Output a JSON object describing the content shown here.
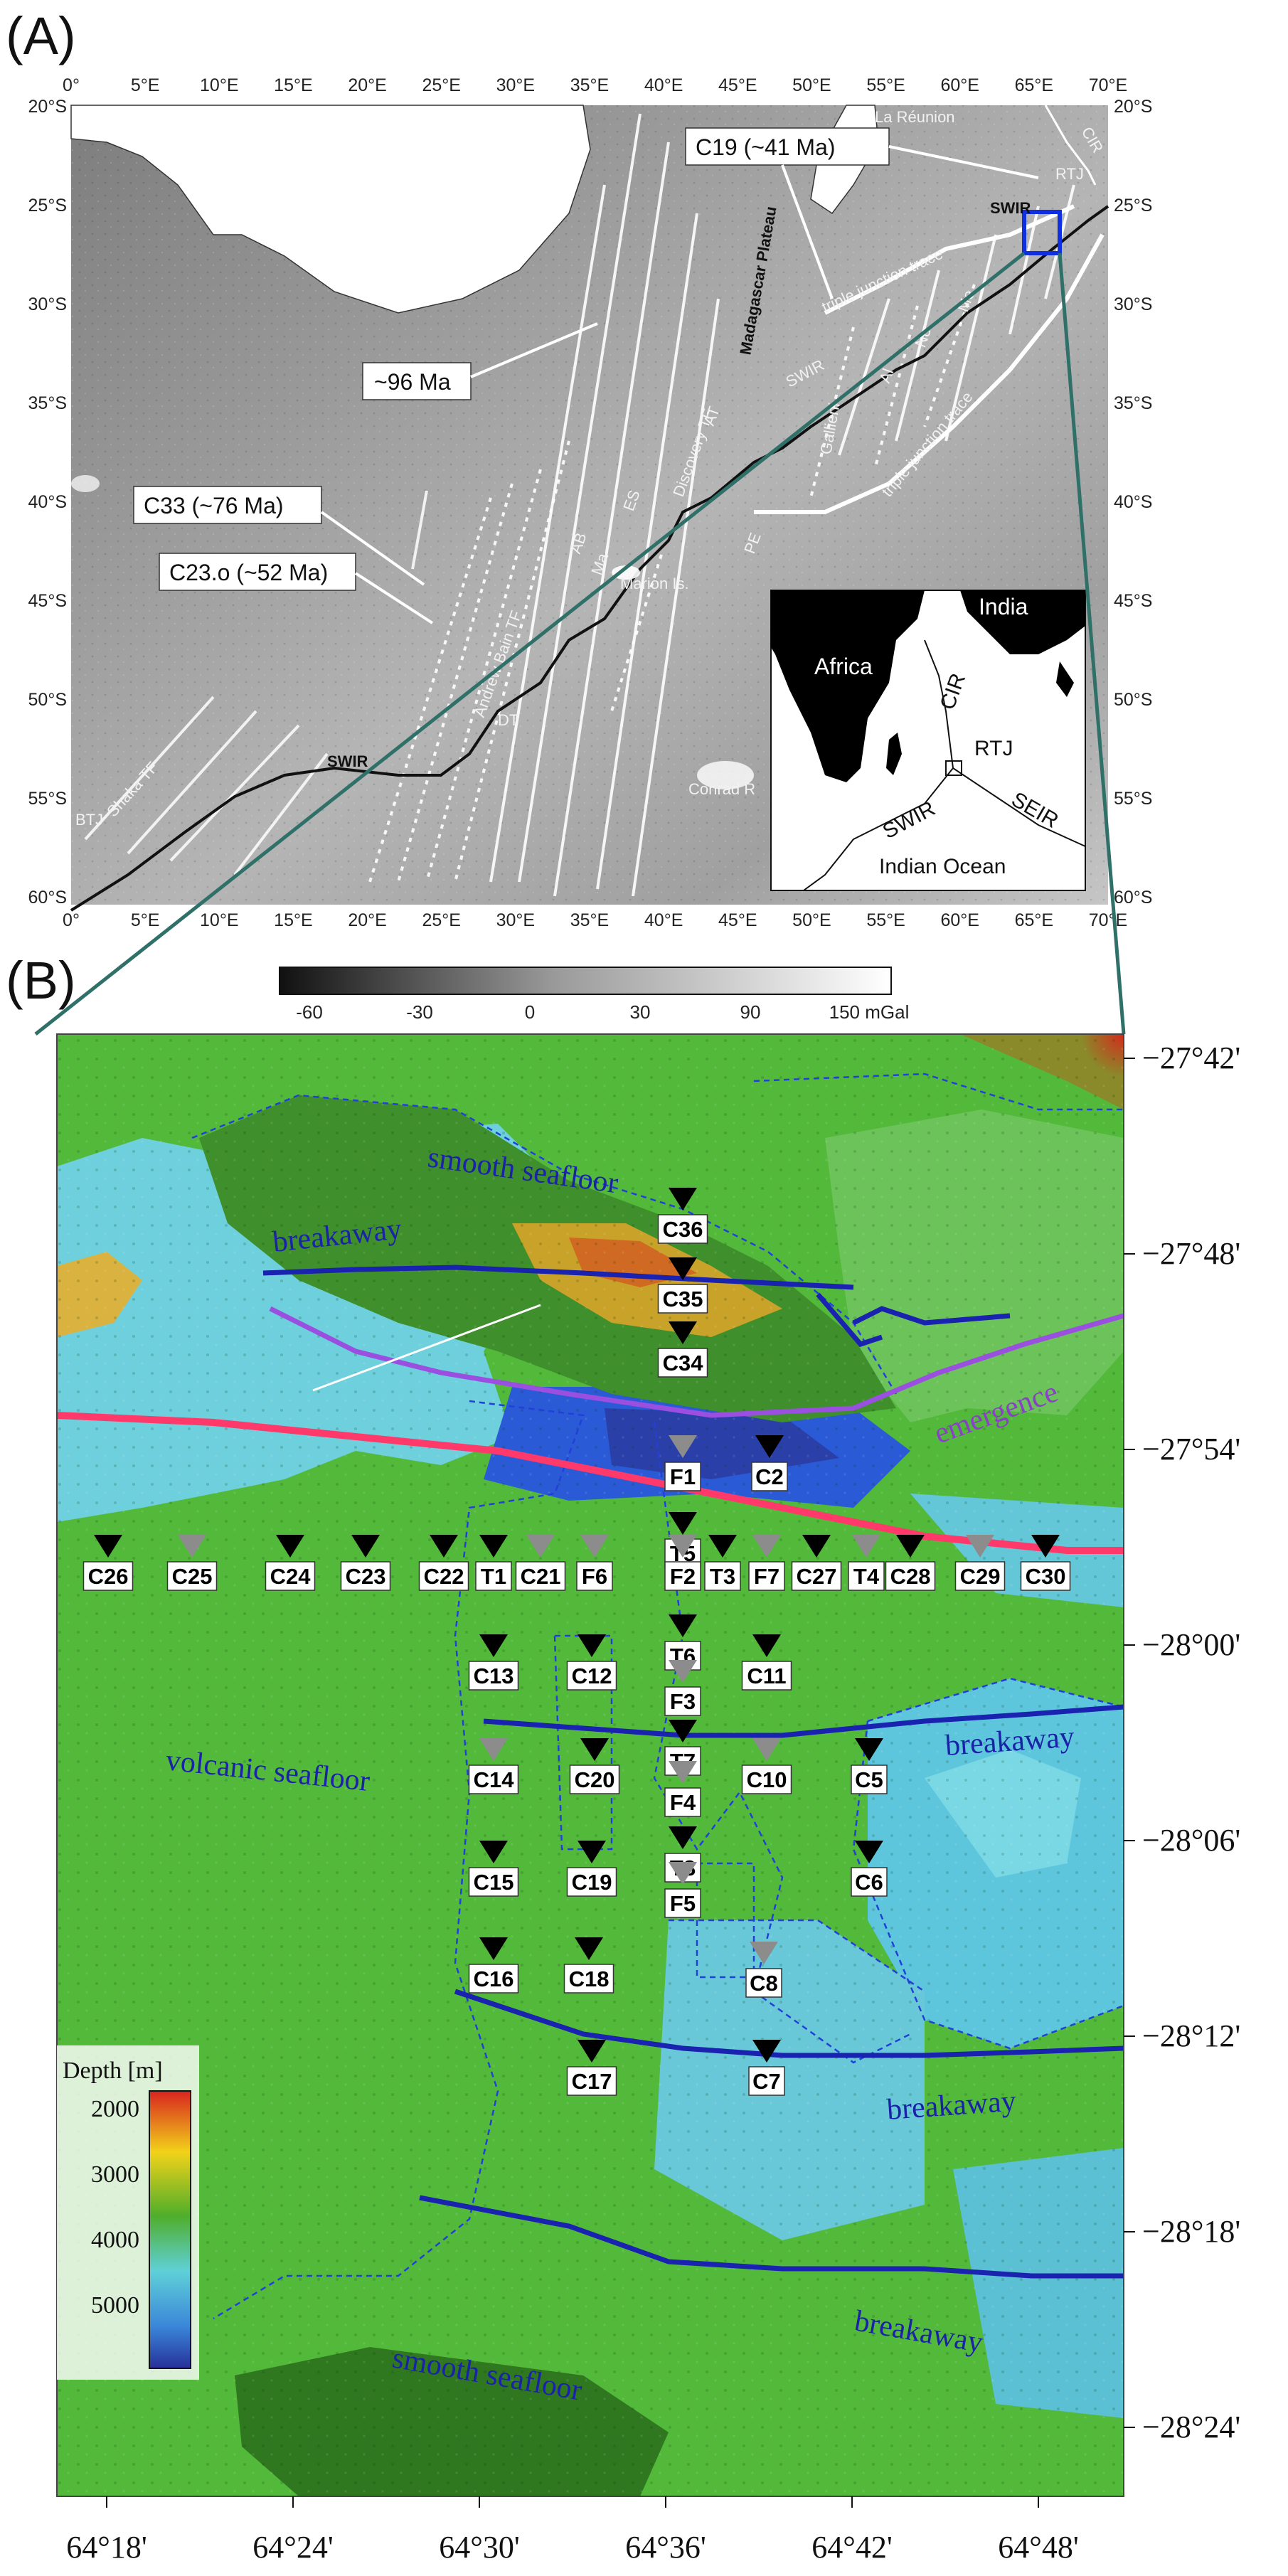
{
  "panels": {
    "a": "(A)",
    "b": "(B)"
  },
  "panel_a": {
    "lon_ticks": [
      "0°",
      "5°E",
      "10°E",
      "15°E",
      "20°E",
      "25°E",
      "30°E",
      "35°E",
      "40°E",
      "45°E",
      "50°E",
      "55°E",
      "60°E",
      "65°E",
      "70°E"
    ],
    "lat_ticks": [
      "20°S",
      "25°S",
      "30°S",
      "35°S",
      "40°S",
      "45°S",
      "50°S",
      "55°S",
      "60°S"
    ],
    "callouts": {
      "c19": "C19 (~41 Ma)",
      "ma96": "~96 Ma",
      "c33": "C33 (~76 Ma)",
      "c23": "C23.o (~52 Ma)"
    },
    "features": {
      "la_reunion": "La Réunion",
      "cir": "CIR",
      "rtj": "RTJ",
      "swir_ne": "SWIR",
      "tjt_north": "triple junction trace",
      "tjt_south": "triple junction trace",
      "madagascar_plateau": "Madagascar Plateau",
      "swir_mid": "SWIR",
      "discovery": "Discovery TF",
      "gallieni": "Gallieni",
      "es": "ES",
      "ma": "Ma",
      "ab": "AB",
      "marion": "Marion Is.",
      "at": "AT",
      "pe": "PE",
      "shaka": "Shaka TF",
      "swir_w": "SWIR",
      "btj": "BTJ",
      "dt": "DT",
      "andrew_bain": "Andrew Bain TF",
      "conrad": "Conrad R",
      "me": "Me",
      "no": "No",
      "ai": "Al"
    },
    "inset": {
      "india": "India",
      "africa": "Africa",
      "cir": "CIR",
      "rtj": "RTJ",
      "swir": "SWIR",
      "seir": "SEIR",
      "ocean": "Indian Ocean"
    },
    "colorbar": {
      "ticks": [
        "-60",
        "-30",
        "0",
        "30",
        "90",
        "150 mGal"
      ]
    }
  },
  "panel_b": {
    "lat_ticks": [
      "−27°42'",
      "−27°48'",
      "−27°54'",
      "−28°00'",
      "−28°06'",
      "−28°12'",
      "−28°18'",
      "−28°24'"
    ],
    "lon_ticks": [
      "64°18'",
      "64°24'",
      "64°30'",
      "64°36'",
      "64°42'",
      "64°48'"
    ],
    "labels": {
      "smooth_top": "smooth seafloor",
      "breakaway_nw": "breakaway",
      "emergence": "emergence",
      "volcanic": "volcanic seafloor",
      "breakaway_e1": "breakaway",
      "breakaway_e2": "breakaway",
      "breakaway_e3": "breakaway",
      "smooth_bottom": "smooth seafloor"
    },
    "stations": [
      {
        "id": "C36",
        "type": "black"
      },
      {
        "id": "C35",
        "type": "black"
      },
      {
        "id": "C34",
        "type": "black"
      },
      {
        "id": "F1",
        "type": "gray"
      },
      {
        "id": "C2",
        "type": "black"
      },
      {
        "id": "T5",
        "type": "black"
      },
      {
        "id": "C26",
        "type": "black"
      },
      {
        "id": "C25",
        "type": "gray"
      },
      {
        "id": "C24",
        "type": "black"
      },
      {
        "id": "C23",
        "type": "black"
      },
      {
        "id": "C22",
        "type": "black"
      },
      {
        "id": "T1",
        "type": "black"
      },
      {
        "id": "C21",
        "type": "gray"
      },
      {
        "id": "F6",
        "type": "gray"
      },
      {
        "id": "F2",
        "type": "gray"
      },
      {
        "id": "T3",
        "type": "black"
      },
      {
        "id": "F7",
        "type": "gray"
      },
      {
        "id": "C27",
        "type": "black"
      },
      {
        "id": "T4",
        "type": "gray"
      },
      {
        "id": "C28",
        "type": "black"
      },
      {
        "id": "C29",
        "type": "gray"
      },
      {
        "id": "C30",
        "type": "black"
      },
      {
        "id": "T6",
        "type": "black"
      },
      {
        "id": "C13",
        "type": "black"
      },
      {
        "id": "C12",
        "type": "black"
      },
      {
        "id": "F3",
        "type": "gray"
      },
      {
        "id": "C11",
        "type": "black"
      },
      {
        "id": "T7",
        "type": "black"
      },
      {
        "id": "C14",
        "type": "gray"
      },
      {
        "id": "C20",
        "type": "black"
      },
      {
        "id": "F4",
        "type": "gray"
      },
      {
        "id": "C10",
        "type": "gray"
      },
      {
        "id": "C5",
        "type": "black"
      },
      {
        "id": "T8",
        "type": "black"
      },
      {
        "id": "C15",
        "type": "black"
      },
      {
        "id": "C19",
        "type": "black"
      },
      {
        "id": "F5",
        "type": "gray"
      },
      {
        "id": "C6",
        "type": "black"
      },
      {
        "id": "C16",
        "type": "black"
      },
      {
        "id": "C18",
        "type": "black"
      },
      {
        "id": "C8",
        "type": "gray"
      },
      {
        "id": "C17",
        "type": "black"
      },
      {
        "id": "C7",
        "type": "black"
      }
    ],
    "legend": {
      "title": "Depth [m]",
      "ticks": [
        "2000",
        "3000",
        "4000",
        "5000"
      ]
    }
  },
  "colors": {
    "station_black": "#000000",
    "station_gray": "#8c8c8c",
    "breakaway": "#1a22b0",
    "emergence": "#9a4fe0",
    "ridge_axis": "#ff3a6a",
    "dashed_contour": "#2240d8",
    "box": "#1030e0",
    "connector": "#2f7068"
  }
}
